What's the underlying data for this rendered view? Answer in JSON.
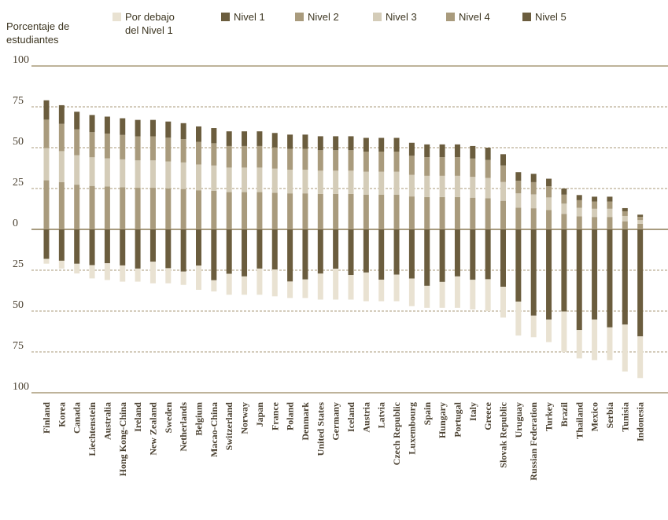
{
  "chart_data": {
    "type": "bar",
    "stacked": "diverging",
    "ylabel": "Porcentaje de estudiantes",
    "y_ticks": [
      "100",
      "75",
      "50",
      "25",
      "0",
      "25",
      "50",
      "75",
      "100"
    ],
    "ylim": [
      -100,
      100
    ],
    "legend": [
      {
        "label": "Por debajo del Nivel 1",
        "color": "#e9e2d2"
      },
      {
        "label": "Nivel 1",
        "color": "#6b5d3e"
      },
      {
        "label": "Nivel 2",
        "color": "#a99b7d"
      },
      {
        "label": "Nivel 3",
        "color": "#d4ccb8"
      },
      {
        "label": "Nivel 4",
        "color": "#a99b7d"
      },
      {
        "label": "Nivel 5",
        "color": "#6b5d3e"
      }
    ],
    "categories": [
      "Finland",
      "Korea",
      "Canada",
      "Liechtenstein",
      "Australia",
      "Hong Kong-China",
      "Ireland",
      "New Zealand",
      "Sweden",
      "Netherlands",
      "Belgium",
      "Macao-China",
      "Switzerland",
      "Norway",
      "Japan",
      "France",
      "Poland",
      "Denmark",
      "United States",
      "Germany",
      "Iceland",
      "Austria",
      "Latvia",
      "Czech Republic",
      "Luxembourg",
      "Spain",
      "Hungary",
      "Portugal",
      "Italy",
      "Greece",
      "Slovak Republic",
      "Uruguay",
      "Russian Federation",
      "Turkey",
      "Brazil",
      "Thailand",
      "Mexico",
      "Serbia",
      "Tunisia",
      "Indonesia"
    ],
    "above_zero": [
      79,
      76,
      72,
      70,
      69,
      68,
      67,
      67,
      66,
      65,
      63,
      62,
      60,
      60,
      60,
      59,
      58,
      58,
      57,
      57,
      57,
      56,
      56,
      56,
      53,
      52,
      52,
      52,
      51,
      50,
      46,
      35,
      34,
      31,
      25,
      21,
      20,
      20,
      13,
      9
    ],
    "below_zero": [
      21,
      24,
      27,
      30,
      31,
      32,
      32,
      33,
      33,
      34,
      37,
      38,
      40,
      40,
      40,
      41,
      42,
      42,
      43,
      43,
      43,
      44,
      44,
      44,
      47,
      48,
      48,
      48,
      49,
      50,
      54,
      65,
      66,
      69,
      75,
      79,
      80,
      80,
      87,
      91
    ],
    "below_level1_share": [
      0.14,
      0.2,
      0.22,
      0.27,
      0.33,
      0.31,
      0.25,
      0.4,
      0.28,
      0.24,
      0.4,
      0.18,
      0.32,
      0.28,
      0.4,
      0.4,
      0.24,
      0.27,
      0.37,
      0.44,
      0.35,
      0.4,
      0.3,
      0.37,
      0.36,
      0.28,
      0.33,
      0.4,
      0.37,
      0.39,
      0.35,
      0.32,
      0.2,
      0.2,
      0.33,
      0.22,
      0.31,
      0.25,
      0.33,
      0.28
    ]
  }
}
